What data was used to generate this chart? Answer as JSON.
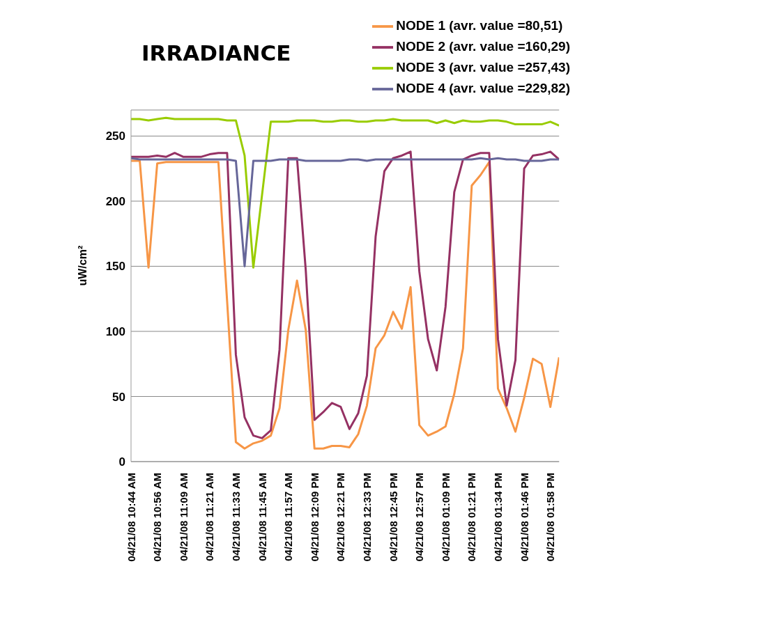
{
  "chart_data": {
    "type": "line",
    "title": "IRRADIANCE",
    "ylabel": "uW/cm²",
    "categories": [
      "04/21/08 10:44 AM",
      null,
      null,
      "04/21/08 10:56 AM",
      null,
      null,
      "04/21/08 11:09 AM",
      null,
      null,
      "04/21/08 11:21 AM",
      null,
      null,
      "04/21/08 11:33 AM",
      null,
      null,
      "04/21/08 11:45 AM",
      null,
      null,
      "04/21/08 11:57 AM",
      null,
      null,
      "04/21/08 12:09 PM",
      null,
      null,
      "04/21/08 12:21 PM",
      null,
      null,
      "04/21/08 12:33 PM",
      null,
      null,
      "04/21/08 12:45 PM",
      null,
      null,
      "04/21/08 12:57 PM",
      null,
      null,
      "04/21/08 01:09 PM",
      null,
      null,
      "04/21/08 01:21 PM",
      null,
      null,
      "04/21/08 01:34 PM",
      null,
      null,
      "04/21/08 01:46 PM",
      null,
      null,
      "04/21/08 01:58 PM",
      null
    ],
    "series": [
      {
        "name": "NODE 1 (avr. value =80,51)",
        "color": "#f79646",
        "values": [
          231,
          231,
          149,
          229,
          230,
          230,
          230,
          230,
          230,
          230,
          230,
          123,
          15,
          10,
          14,
          16,
          20,
          41,
          101,
          139,
          101,
          10,
          10,
          12,
          12,
          11,
          21,
          43,
          87,
          97,
          115,
          102,
          134,
          28,
          20,
          23,
          27,
          52,
          87,
          212,
          220,
          230,
          56,
          41,
          23,
          49,
          79,
          75,
          42,
          80
        ]
      },
      {
        "name": "NODE 2 (avr. value =160,29)",
        "color": "#953163",
        "values": [
          234,
          234,
          234,
          235,
          234,
          237,
          234,
          234,
          234,
          236,
          237,
          237,
          82,
          34,
          20,
          18,
          24,
          86,
          233,
          233,
          147,
          32,
          38,
          45,
          42,
          25,
          37,
          66,
          173,
          223,
          233,
          235,
          238,
          146,
          94,
          70,
          119,
          207,
          232,
          235,
          237,
          237,
          94,
          43,
          78,
          225,
          235,
          236,
          238,
          232
        ]
      },
      {
        "name": "NODE 3 (avr. value =257,43)",
        "color": "#99cc00",
        "values": [
          263,
          263,
          262,
          263,
          264,
          263,
          263,
          263,
          263,
          263,
          263,
          262,
          262,
          235,
          149,
          205,
          261,
          261,
          261,
          262,
          262,
          262,
          261,
          261,
          262,
          262,
          261,
          261,
          262,
          262,
          263,
          262,
          262,
          262,
          262,
          260,
          262,
          260,
          262,
          261,
          261,
          262,
          262,
          261,
          259,
          259,
          259,
          259,
          261,
          258
        ]
      },
      {
        "name": "NODE 4 (avr. value =229,82)",
        "color": "#666699",
        "values": [
          233,
          232,
          232,
          232,
          232,
          232,
          232,
          232,
          232,
          232,
          232,
          232,
          231,
          150,
          231,
          231,
          231,
          232,
          232,
          232,
          231,
          231,
          231,
          231,
          231,
          232,
          232,
          231,
          232,
          232,
          232,
          232,
          232,
          232,
          232,
          232,
          232,
          232,
          232,
          232,
          233,
          232,
          233,
          232,
          232,
          231,
          231,
          231,
          232,
          232
        ]
      }
    ],
    "ylim": [
      0,
      270
    ],
    "yticks": [
      0,
      50,
      100,
      150,
      200,
      250
    ],
    "grid": "y",
    "legend": "top right",
    "marker": "none",
    "line_style": "solid"
  }
}
